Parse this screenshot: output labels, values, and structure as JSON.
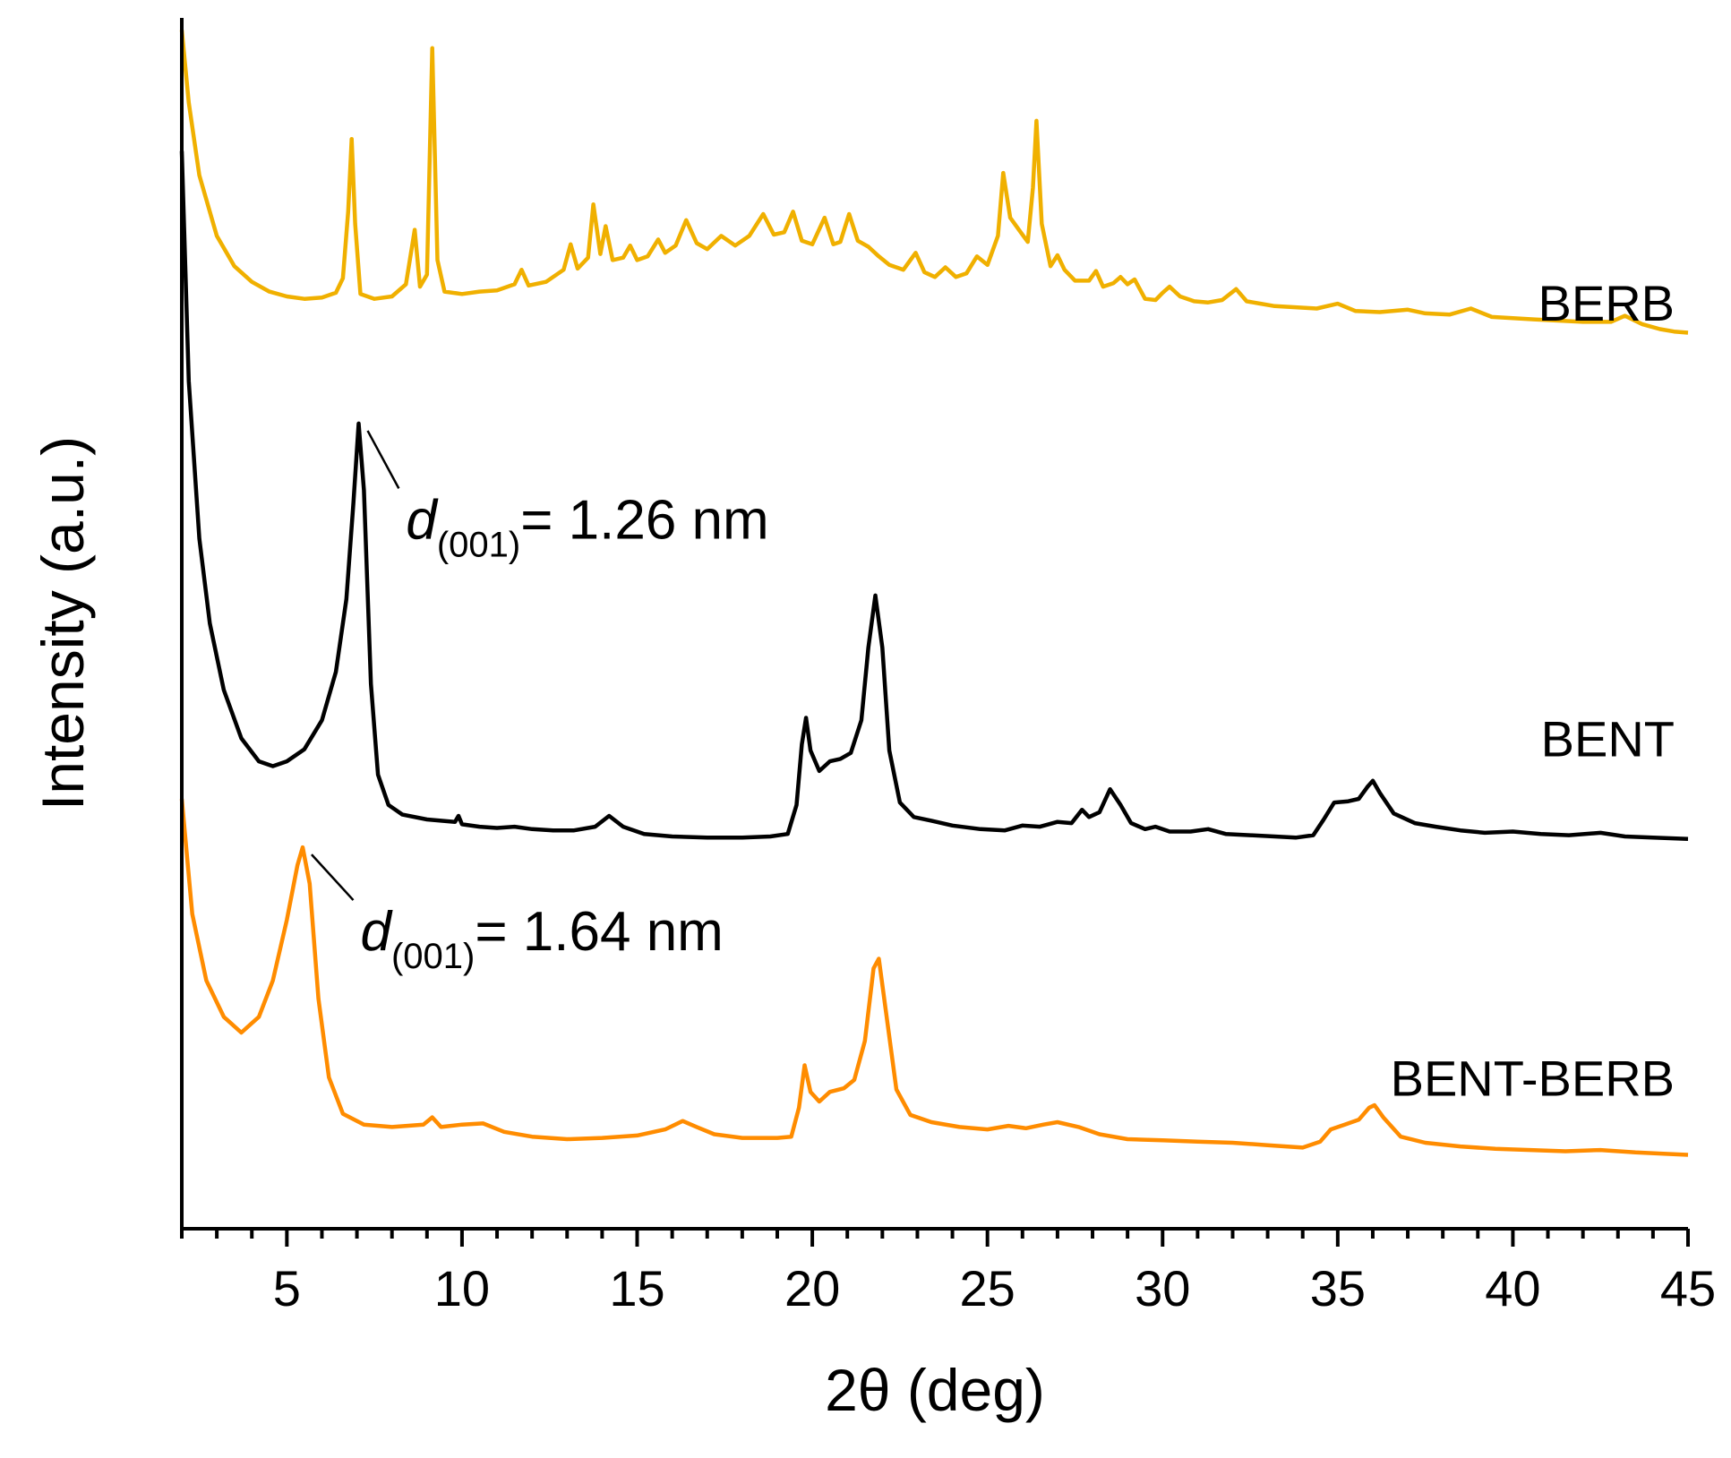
{
  "chart_data": {
    "type": "line",
    "xlabel": "2θ (deg)",
    "ylabel": "Intensity (a.u.)",
    "xlim": [
      2,
      45
    ],
    "xticks": [
      5,
      10,
      15,
      20,
      25,
      30,
      35,
      40,
      45
    ],
    "ylim": [
      0,
      100
    ],
    "y_ticks_shown": false,
    "grid": false,
    "legend": "labels at right end of each curve",
    "series": [
      {
        "name": "BERB",
        "color": "#f0b000",
        "label_y": 75,
        "points": [
          [
            2.0,
            99
          ],
          [
            2.2,
            93
          ],
          [
            2.5,
            87
          ],
          [
            3.0,
            82
          ],
          [
            3.5,
            79.5
          ],
          [
            4.0,
            78.2
          ],
          [
            4.5,
            77.4
          ],
          [
            5.0,
            77.0
          ],
          [
            5.5,
            76.8
          ],
          [
            6.0,
            76.9
          ],
          [
            6.4,
            77.3
          ],
          [
            6.6,
            78.5
          ],
          [
            6.75,
            84
          ],
          [
            6.85,
            90
          ],
          [
            6.95,
            83
          ],
          [
            7.1,
            77.2
          ],
          [
            7.5,
            76.8
          ],
          [
            8.0,
            77.0
          ],
          [
            8.4,
            78.0
          ],
          [
            8.65,
            82.5
          ],
          [
            8.8,
            77.8
          ],
          [
            9.0,
            78.8
          ],
          [
            9.15,
            97.5
          ],
          [
            9.3,
            80
          ],
          [
            9.5,
            77.4
          ],
          [
            10.0,
            77.2
          ],
          [
            10.5,
            77.4
          ],
          [
            11.0,
            77.5
          ],
          [
            11.5,
            78.0
          ],
          [
            11.7,
            79.2
          ],
          [
            11.9,
            77.9
          ],
          [
            12.4,
            78.2
          ],
          [
            12.9,
            79.2
          ],
          [
            13.1,
            81.3
          ],
          [
            13.3,
            79.3
          ],
          [
            13.6,
            80.2
          ],
          [
            13.75,
            84.6
          ],
          [
            13.95,
            80.5
          ],
          [
            14.1,
            82.8
          ],
          [
            14.3,
            80.0
          ],
          [
            14.6,
            80.2
          ],
          [
            14.8,
            81.2
          ],
          [
            15.0,
            80.0
          ],
          [
            15.3,
            80.3
          ],
          [
            15.6,
            81.7
          ],
          [
            15.8,
            80.6
          ],
          [
            16.1,
            81.2
          ],
          [
            16.4,
            83.3
          ],
          [
            16.7,
            81.4
          ],
          [
            17.0,
            80.9
          ],
          [
            17.4,
            82.0
          ],
          [
            17.8,
            81.2
          ],
          [
            18.2,
            82.0
          ],
          [
            18.6,
            83.8
          ],
          [
            18.9,
            82.1
          ],
          [
            19.2,
            82.3
          ],
          [
            19.45,
            84.0
          ],
          [
            19.7,
            81.6
          ],
          [
            20.0,
            81.3
          ],
          [
            20.35,
            83.5
          ],
          [
            20.6,
            81.3
          ],
          [
            20.8,
            81.5
          ],
          [
            21.05,
            83.8
          ],
          [
            21.3,
            81.6
          ],
          [
            21.6,
            81.1
          ],
          [
            21.9,
            80.3
          ],
          [
            22.2,
            79.6
          ],
          [
            22.6,
            79.2
          ],
          [
            22.95,
            80.6
          ],
          [
            23.2,
            79.0
          ],
          [
            23.5,
            78.6
          ],
          [
            23.8,
            79.4
          ],
          [
            24.1,
            78.6
          ],
          [
            24.4,
            78.9
          ],
          [
            24.7,
            80.3
          ],
          [
            25.0,
            79.6
          ],
          [
            25.3,
            82.0
          ],
          [
            25.45,
            87.2
          ],
          [
            25.65,
            83.5
          ],
          [
            25.95,
            82.3
          ],
          [
            26.15,
            81.5
          ],
          [
            26.3,
            86.0
          ],
          [
            26.4,
            91.5
          ],
          [
            26.55,
            83.0
          ],
          [
            26.8,
            79.5
          ],
          [
            27.0,
            80.4
          ],
          [
            27.2,
            79.2
          ],
          [
            27.5,
            78.3
          ],
          [
            27.9,
            78.3
          ],
          [
            28.1,
            79.1
          ],
          [
            28.3,
            77.8
          ],
          [
            28.6,
            78.1
          ],
          [
            28.8,
            78.6
          ],
          [
            29.0,
            78.0
          ],
          [
            29.2,
            78.4
          ],
          [
            29.5,
            76.8
          ],
          [
            29.8,
            76.7
          ],
          [
            30.0,
            77.3
          ],
          [
            30.2,
            77.8
          ],
          [
            30.5,
            77.0
          ],
          [
            30.9,
            76.6
          ],
          [
            31.3,
            76.5
          ],
          [
            31.7,
            76.7
          ],
          [
            32.1,
            77.6
          ],
          [
            32.4,
            76.6
          ],
          [
            32.8,
            76.4
          ],
          [
            33.2,
            76.2
          ],
          [
            33.8,
            76.1
          ],
          [
            34.4,
            76.0
          ],
          [
            35.0,
            76.4
          ],
          [
            35.5,
            75.8
          ],
          [
            36.2,
            75.7
          ],
          [
            37.0,
            75.9
          ],
          [
            37.5,
            75.6
          ],
          [
            38.2,
            75.5
          ],
          [
            38.8,
            76.0
          ],
          [
            39.4,
            75.3
          ],
          [
            40.0,
            75.2
          ],
          [
            40.6,
            75.1
          ],
          [
            41.3,
            75.0
          ],
          [
            42.0,
            74.9
          ],
          [
            42.8,
            74.9
          ],
          [
            43.2,
            75.4
          ],
          [
            43.7,
            74.7
          ],
          [
            44.2,
            74.3
          ],
          [
            44.6,
            74.1
          ],
          [
            45.0,
            74.0
          ]
        ]
      },
      {
        "name": "BENT",
        "color": "#000000",
        "label_y": 39,
        "points": [
          [
            2.0,
            89
          ],
          [
            2.2,
            70
          ],
          [
            2.5,
            57
          ],
          [
            2.8,
            50
          ],
          [
            3.2,
            44.5
          ],
          [
            3.7,
            40.5
          ],
          [
            4.2,
            38.6
          ],
          [
            4.6,
            38.2
          ],
          [
            5.0,
            38.6
          ],
          [
            5.5,
            39.6
          ],
          [
            6.0,
            42
          ],
          [
            6.4,
            46
          ],
          [
            6.7,
            52
          ],
          [
            6.9,
            60
          ],
          [
            7.05,
            66.5
          ],
          [
            7.2,
            61
          ],
          [
            7.4,
            45
          ],
          [
            7.6,
            37.5
          ],
          [
            7.9,
            35.0
          ],
          [
            8.3,
            34.2
          ],
          [
            9.0,
            33.8
          ],
          [
            9.8,
            33.6
          ],
          [
            9.9,
            34.1
          ],
          [
            10.0,
            33.4
          ],
          [
            10.5,
            33.2
          ],
          [
            11.0,
            33.1
          ],
          [
            11.5,
            33.2
          ],
          [
            12.0,
            33.0
          ],
          [
            12.6,
            32.9
          ],
          [
            13.2,
            32.9
          ],
          [
            13.8,
            33.2
          ],
          [
            14.2,
            34.1
          ],
          [
            14.6,
            33.2
          ],
          [
            15.2,
            32.6
          ],
          [
            16.0,
            32.4
          ],
          [
            17.0,
            32.3
          ],
          [
            18.0,
            32.3
          ],
          [
            18.8,
            32.4
          ],
          [
            19.3,
            32.6
          ],
          [
            19.55,
            35.0
          ],
          [
            19.7,
            40.0
          ],
          [
            19.82,
            42.2
          ],
          [
            19.95,
            39.5
          ],
          [
            20.2,
            37.8
          ],
          [
            20.5,
            38.6
          ],
          [
            20.8,
            38.8
          ],
          [
            21.1,
            39.3
          ],
          [
            21.4,
            42.0
          ],
          [
            21.6,
            48.0
          ],
          [
            21.8,
            52.3
          ],
          [
            22.0,
            48.0
          ],
          [
            22.2,
            39.5
          ],
          [
            22.5,
            35.2
          ],
          [
            22.9,
            34.0
          ],
          [
            23.4,
            33.7
          ],
          [
            24.0,
            33.3
          ],
          [
            24.8,
            33.0
          ],
          [
            25.5,
            32.9
          ],
          [
            26.0,
            33.3
          ],
          [
            26.5,
            33.2
          ],
          [
            27.0,
            33.6
          ],
          [
            27.4,
            33.5
          ],
          [
            27.7,
            34.6
          ],
          [
            27.9,
            34.0
          ],
          [
            28.2,
            34.4
          ],
          [
            28.5,
            36.3
          ],
          [
            28.8,
            35.0
          ],
          [
            29.1,
            33.5
          ],
          [
            29.5,
            33.0
          ],
          [
            29.8,
            33.2
          ],
          [
            30.2,
            32.8
          ],
          [
            30.8,
            32.8
          ],
          [
            31.3,
            33.0
          ],
          [
            31.8,
            32.6
          ],
          [
            32.5,
            32.5
          ],
          [
            33.2,
            32.4
          ],
          [
            33.8,
            32.3
          ],
          [
            34.3,
            32.5
          ],
          [
            34.6,
            33.8
          ],
          [
            34.9,
            35.2
          ],
          [
            35.3,
            35.3
          ],
          [
            35.6,
            35.5
          ],
          [
            35.85,
            36.5
          ],
          [
            36.0,
            37.0
          ],
          [
            36.2,
            36.0
          ],
          [
            36.6,
            34.3
          ],
          [
            37.2,
            33.5
          ],
          [
            37.8,
            33.2
          ],
          [
            38.5,
            32.9
          ],
          [
            39.2,
            32.7
          ],
          [
            40.0,
            32.8
          ],
          [
            40.8,
            32.6
          ],
          [
            41.6,
            32.5
          ],
          [
            42.5,
            32.7
          ],
          [
            43.2,
            32.4
          ],
          [
            44.0,
            32.3
          ],
          [
            45.0,
            32.2
          ]
        ]
      },
      {
        "name": "BENT-BERB",
        "color": "#ff8c00",
        "label_y": 11,
        "points": [
          [
            2.0,
            35.5
          ],
          [
            2.3,
            26
          ],
          [
            2.7,
            20.5
          ],
          [
            3.2,
            17.5
          ],
          [
            3.7,
            16.2
          ],
          [
            4.2,
            17.5
          ],
          [
            4.6,
            20.5
          ],
          [
            5.0,
            25.5
          ],
          [
            5.3,
            30
          ],
          [
            5.45,
            31.5
          ],
          [
            5.65,
            28.5
          ],
          [
            5.9,
            19
          ],
          [
            6.2,
            12.5
          ],
          [
            6.6,
            9.5
          ],
          [
            7.2,
            8.6
          ],
          [
            8.0,
            8.4
          ],
          [
            8.9,
            8.6
          ],
          [
            9.15,
            9.2
          ],
          [
            9.4,
            8.4
          ],
          [
            10.0,
            8.6
          ],
          [
            10.6,
            8.7
          ],
          [
            11.2,
            8.0
          ],
          [
            12.0,
            7.6
          ],
          [
            13.0,
            7.4
          ],
          [
            14.0,
            7.5
          ],
          [
            15.0,
            7.7
          ],
          [
            15.8,
            8.2
          ],
          [
            16.3,
            8.9
          ],
          [
            16.7,
            8.4
          ],
          [
            17.2,
            7.8
          ],
          [
            18.0,
            7.5
          ],
          [
            19.0,
            7.5
          ],
          [
            19.4,
            7.6
          ],
          [
            19.62,
            10.0
          ],
          [
            19.78,
            13.5
          ],
          [
            19.95,
            11.3
          ],
          [
            20.2,
            10.5
          ],
          [
            20.5,
            11.3
          ],
          [
            20.9,
            11.6
          ],
          [
            21.2,
            12.3
          ],
          [
            21.5,
            15.5
          ],
          [
            21.75,
            21.5
          ],
          [
            21.9,
            22.3
          ],
          [
            22.1,
            18.0
          ],
          [
            22.4,
            11.5
          ],
          [
            22.8,
            9.4
          ],
          [
            23.4,
            8.8
          ],
          [
            24.2,
            8.4
          ],
          [
            25.0,
            8.2
          ],
          [
            25.6,
            8.5
          ],
          [
            26.1,
            8.3
          ],
          [
            26.6,
            8.6
          ],
          [
            27.0,
            8.8
          ],
          [
            27.6,
            8.4
          ],
          [
            28.2,
            7.8
          ],
          [
            29.0,
            7.4
          ],
          [
            30.0,
            7.3
          ],
          [
            31.0,
            7.2
          ],
          [
            32.0,
            7.1
          ],
          [
            33.0,
            6.9
          ],
          [
            34.0,
            6.7
          ],
          [
            34.5,
            7.2
          ],
          [
            34.8,
            8.2
          ],
          [
            35.2,
            8.6
          ],
          [
            35.6,
            9.0
          ],
          [
            35.9,
            10.0
          ],
          [
            36.05,
            10.2
          ],
          [
            36.3,
            9.2
          ],
          [
            36.8,
            7.6
          ],
          [
            37.5,
            7.1
          ],
          [
            38.5,
            6.8
          ],
          [
            39.5,
            6.6
          ],
          [
            40.5,
            6.5
          ],
          [
            41.5,
            6.4
          ],
          [
            42.5,
            6.5
          ],
          [
            43.5,
            6.3
          ],
          [
            44.3,
            6.2
          ],
          [
            45.0,
            6.1
          ]
        ]
      }
    ],
    "annotations": [
      {
        "symbol": "d",
        "subscript": "(001)",
        "text": "= 1.26 nm",
        "peak_x": 7.05,
        "peak_y": 66.5,
        "label_x": 8.4,
        "label_y": 57
      },
      {
        "symbol": "d",
        "subscript": "(001)",
        "text": "= 1.64 nm",
        "peak_x": 5.45,
        "peak_y": 31.5,
        "label_x": 7.1,
        "label_y": 23
      }
    ]
  }
}
